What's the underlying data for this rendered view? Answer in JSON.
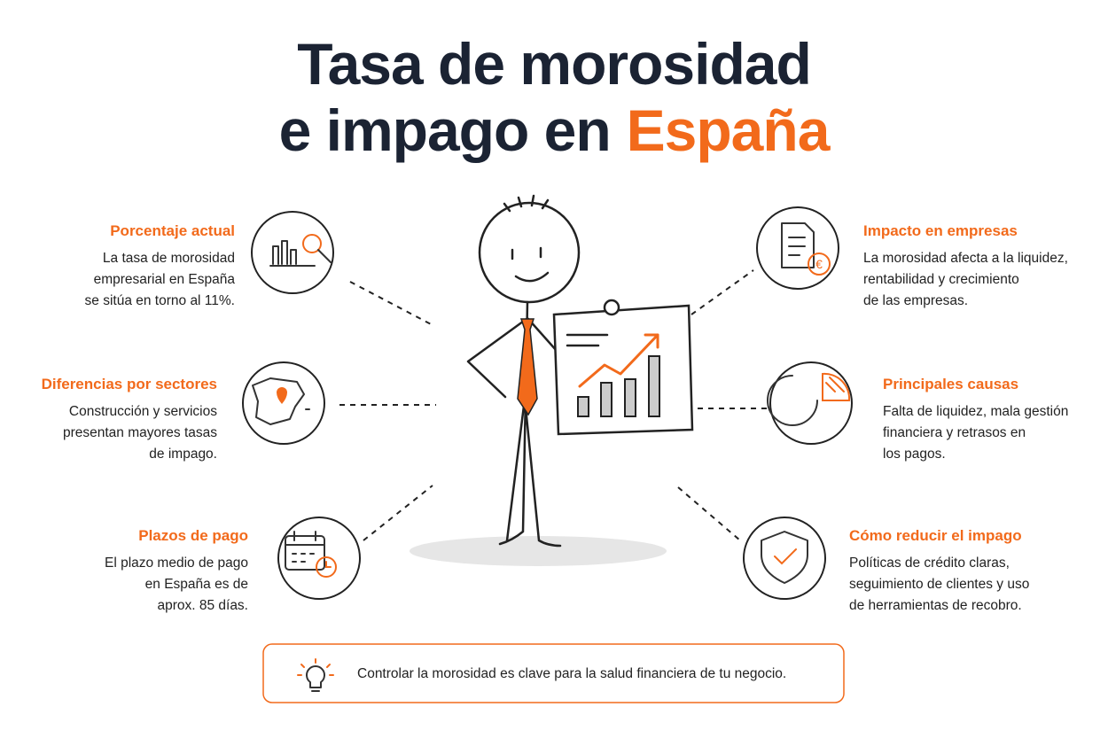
{
  "title": {
    "line1": "Tasa de morosidad",
    "line2": "e impago en",
    "highlight": "España"
  },
  "items": [
    {
      "heading": "Porcentaje actual",
      "lines": [
        "La tasa de morosidad",
        "empresarial en España",
        "se sitúa en torno al 11%."
      ]
    },
    {
      "heading": "Diferencias por sectores",
      "lines": [
        "Construcción y servicios",
        "presentan mayores tasas",
        "de impago."
      ]
    },
    {
      "heading": "Plazos de pago",
      "lines": [
        "El plazo medio de pago",
        "en España es de",
        "aprox. 85 días."
      ]
    },
    {
      "heading": "Impacto en empresas",
      "lines": [
        "La morosidad afecta a la liquidez,",
        "rentabilidad y crecimiento",
        "de las empresas."
      ]
    },
    {
      "heading": "Principales causas",
      "lines": [
        "Falta de liquidez, mala gestión",
        "financiera y retrasos en",
        "los pagos."
      ]
    },
    {
      "heading": "Cómo reducir el impago",
      "lines": [
        "Políticas de crédito claras,",
        "seguimiento de clientes y uso",
        "de herramientas de recobro."
      ]
    }
  ],
  "footer": "Controlar la morosidad es clave para la salud financiera de tu negocio."
}
